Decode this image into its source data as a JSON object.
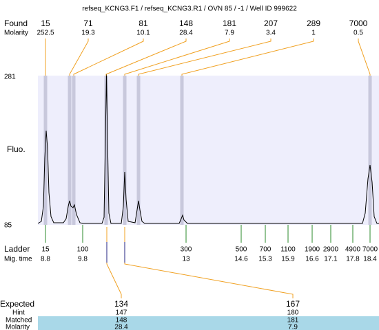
{
  "title": "refseq_KCNG3.F1 / refseq_KCNG3.R1 / OVN 85 / -1 / Well ID 999622",
  "found": {
    "label": "Found",
    "molarity_label": "Molarity",
    "peaks": [
      {
        "size": 15,
        "molarity": 252.5
      },
      {
        "size": 71,
        "molarity": 19.3
      },
      {
        "size": 81,
        "molarity": 10.1
      },
      {
        "size": 148,
        "molarity": 28.4
      },
      {
        "size": 181,
        "molarity": 7.9
      },
      {
        "size": 207,
        "molarity": 3.4
      },
      {
        "size": 289,
        "molarity": 1
      },
      {
        "size": 7000,
        "molarity": 0.5
      }
    ]
  },
  "y_axis": {
    "top": 281,
    "bottom": 85,
    "label": "Fluo."
  },
  "ladder": {
    "label": "Ladder",
    "time_label": "Mig. time",
    "bands": [
      {
        "size": 15,
        "time": 8.8
      },
      {
        "size": 100,
        "time": 9.8
      },
      {
        "size": 300,
        "time": 13
      },
      {
        "size": 500,
        "time": 14.6
      },
      {
        "size": 700,
        "time": 15.3
      },
      {
        "size": 1100,
        "time": 15.9
      },
      {
        "size": 1900,
        "time": 16.6
      },
      {
        "size": 2900,
        "time": 17.1
      },
      {
        "size": 4900,
        "time": 17.8
      },
      {
        "size": 7000,
        "time": 18.4
      }
    ]
  },
  "expected": {
    "labels": {
      "expected": "Expected",
      "hint": "Hint",
      "matched": "Matched",
      "molarity": "Molarity"
    },
    "columns": [
      {
        "expected": 134,
        "hint": 147,
        "matched": 148,
        "molarity": 28.4
      },
      {
        "expected": 167,
        "hint": 180,
        "matched": 181,
        "molarity": 7.9
      }
    ]
  }
}
